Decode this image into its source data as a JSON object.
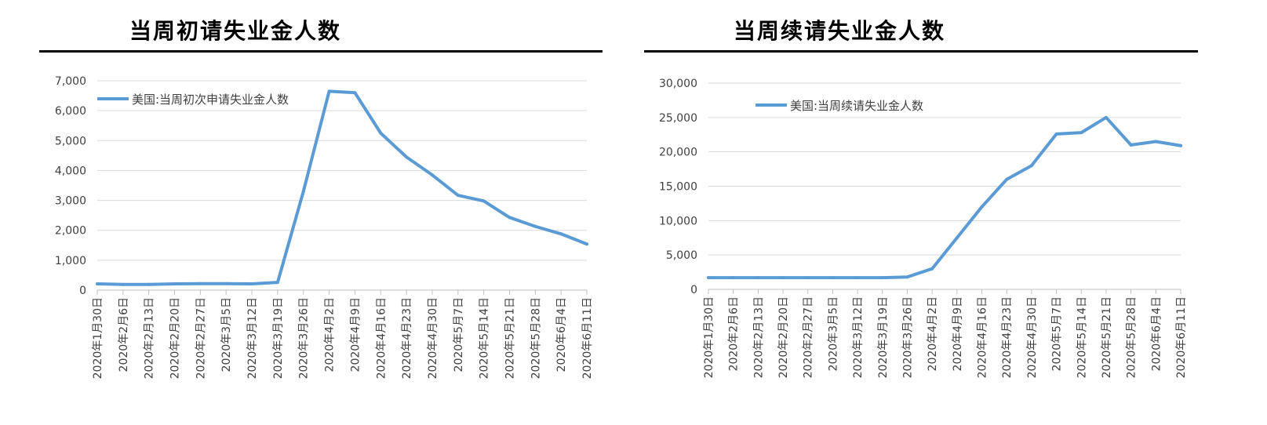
{
  "charts": [
    {
      "title": "当周初请失业金人数",
      "chart_data": {
        "type": "line",
        "title": "当周初请失业金人数",
        "xlabel": "",
        "ylabel": "",
        "categories": [
          "2020年1月30日",
          "2020年2月6日",
          "2020年2月13日",
          "2020年2月20日",
          "2020年2月27日",
          "2020年3月5日",
          "2020年3月12日",
          "2020年3月19日",
          "2020年3月26日",
          "2020年4月2日",
          "2020年4月9日",
          "2020年4月16日",
          "2020年4月23日",
          "2020年4月30日",
          "2020年5月7日",
          "2020年5月14日",
          "2020年5月21日",
          "2020年5月28日",
          "2020年6月4日",
          "2020年6月11日"
        ],
        "series": [
          {
            "name": "美国:当周初次申请失业金人数",
            "values": [
              210,
              190,
              190,
              210,
              215,
              215,
              210,
              260,
              3300,
              6650,
              6600,
              5250,
              4450,
              3850,
              3170,
              2980,
              2430,
              2130,
              1880,
              1540
            ]
          }
        ],
        "ylim": [
          0,
          7000
        ],
        "yticks": [
          0,
          1000,
          2000,
          3000,
          4000,
          5000,
          6000,
          7000
        ],
        "ytick_labels": [
          "0",
          "1,000",
          "2,000",
          "3,000",
          "4,000",
          "5,000",
          "6,000",
          "7,000"
        ],
        "grid": true,
        "legend_position": "top-left",
        "color": "#5b9bd5"
      }
    },
    {
      "title": "当周续请失业金人数",
      "chart_data": {
        "type": "line",
        "title": "当周续请失业金人数",
        "xlabel": "",
        "ylabel": "",
        "categories": [
          "2020年1月30日",
          "2020年2月6日",
          "2020年2月13日",
          "2020年2月20日",
          "2020年2月27日",
          "2020年3月5日",
          "2020年3月12日",
          "2020年3月19日",
          "2020年3月26日",
          "2020年4月2日",
          "2020年4月9日",
          "2020年4月16日",
          "2020年4月23日",
          "2020年4月30日",
          "2020年5月7日",
          "2020年5月14日",
          "2020年5月21日",
          "2020年5月28日",
          "2020年6月4日",
          "2020年6月11日"
        ],
        "series": [
          {
            "name": "美国:当周续请失业金人数",
            "values": [
              1700,
              1700,
              1700,
              1700,
              1700,
              1700,
              1700,
              1700,
              1800,
              3000,
              7500,
              12000,
              16000,
              18000,
              22600,
              22800,
              25000,
              21000,
              21500,
              20900
            ]
          }
        ],
        "ylim": [
          0,
          30000
        ],
        "yticks": [
          0,
          5000,
          10000,
          15000,
          20000,
          25000,
          30000
        ],
        "ytick_labels": [
          "0",
          "5,000",
          "10,000",
          "15,000",
          "20,000",
          "25,000",
          "30,000"
        ],
        "grid": true,
        "legend_position": "top-left",
        "color": "#5b9bd5"
      }
    }
  ]
}
